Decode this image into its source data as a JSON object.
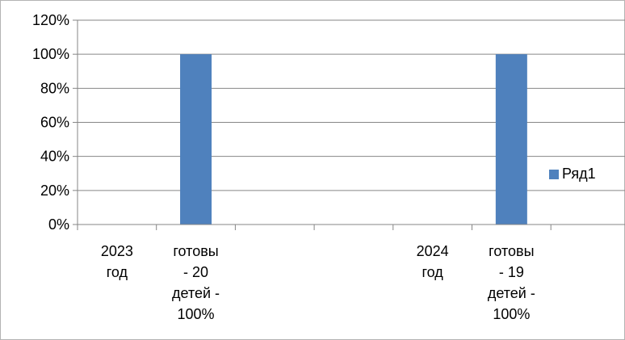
{
  "chart_data": {
    "type": "bar",
    "categories": [
      "2023 год",
      "готовы - 20 детей - 100%",
      "",
      "",
      "2024 год",
      "готовы - 19 детей - 100%",
      ""
    ],
    "category_lines": [
      [
        "2023",
        "год"
      ],
      [
        "готовы",
        "- 20",
        "детей -",
        "100%"
      ],
      [],
      [],
      [
        "2024",
        "год"
      ],
      [
        "готовы",
        "- 19",
        "детей -",
        "100%"
      ],
      []
    ],
    "series": [
      {
        "name": "Ряд1",
        "values": [
          null,
          1.0,
          null,
          null,
          null,
          1.0,
          null
        ]
      }
    ],
    "y_ticks": [
      "0%",
      "20%",
      "40%",
      "60%",
      "80%",
      "100%",
      "120%"
    ],
    "ylim": [
      0,
      1.2
    ],
    "y_format": "percent",
    "grid": true,
    "legend_position": "right",
    "colors": {
      "bar": "#4F81BD",
      "grid": "#868686",
      "axis": "#868686"
    }
  }
}
